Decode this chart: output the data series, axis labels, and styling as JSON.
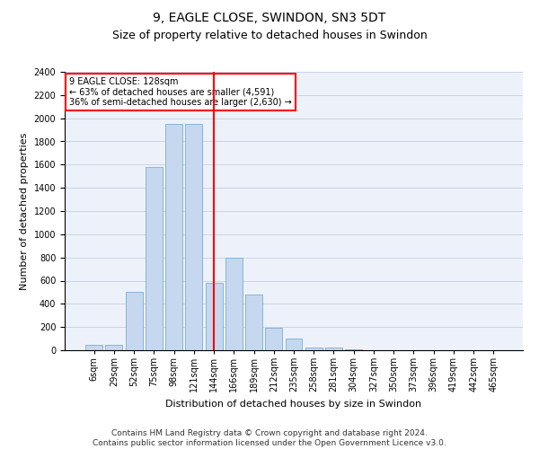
{
  "title": "9, EAGLE CLOSE, SWINDON, SN3 5DT",
  "subtitle": "Size of property relative to detached houses in Swindon",
  "xlabel": "Distribution of detached houses by size in Swindon",
  "ylabel": "Number of detached properties",
  "categories": [
    "6sqm",
    "29sqm",
    "52sqm",
    "75sqm",
    "98sqm",
    "121sqm",
    "144sqm",
    "166sqm",
    "189sqm",
    "212sqm",
    "235sqm",
    "258sqm",
    "281sqm",
    "304sqm",
    "327sqm",
    "350sqm",
    "373sqm",
    "396sqm",
    "419sqm",
    "442sqm",
    "465sqm"
  ],
  "values": [
    50,
    50,
    500,
    1580,
    1950,
    1950,
    580,
    800,
    480,
    190,
    100,
    25,
    25,
    10,
    0,
    0,
    0,
    0,
    0,
    0,
    0
  ],
  "bar_color": "#c5d8f0",
  "bar_edgecolor": "#7aadd4",
  "redline_x": 6.5,
  "redline_label": "9 EAGLE CLOSE: 128sqm",
  "annotation_line1": "← 63% of detached houses are smaller (4,591)",
  "annotation_line2": "36% of semi-detached houses are larger (2,630) →",
  "ylim": [
    0,
    2400
  ],
  "yticks": [
    0,
    200,
    400,
    600,
    800,
    1000,
    1200,
    1400,
    1600,
    1800,
    2000,
    2200,
    2400
  ],
  "grid_color": "#c8d4e8",
  "background_color": "#edf2fa",
  "footer_line1": "Contains HM Land Registry data © Crown copyright and database right 2024.",
  "footer_line2": "Contains public sector information licensed under the Open Government Licence v3.0.",
  "title_fontsize": 10,
  "subtitle_fontsize": 9,
  "axis_label_fontsize": 8,
  "tick_fontsize": 7,
  "annotation_box_edgecolor": "red",
  "redline_color": "red",
  "footer_fontsize": 6.5
}
